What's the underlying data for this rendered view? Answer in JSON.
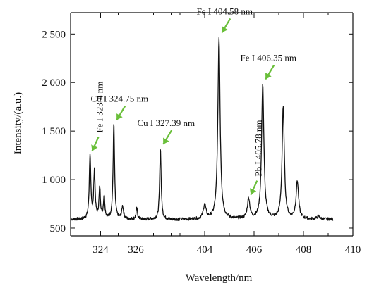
{
  "chart_data": {
    "type": "line",
    "xlabel": "Wavelength/nm",
    "ylabel": "Intensity/(a.u.)",
    "ylim": [
      420,
      2720
    ],
    "y_ticks": [
      {
        "value": 500,
        "label": "500"
      },
      {
        "value": 1000,
        "label": "1 000"
      },
      {
        "value": 1500,
        "label": "1 500"
      },
      {
        "value": 2000,
        "label": "2 000"
      },
      {
        "value": 2500,
        "label": "2 500"
      }
    ],
    "x_axis_note": "broken axis: 322.3–328.5 nm then 403.0–410.0 nm",
    "x_segments": [
      {
        "min": 322.3,
        "max": 328.5,
        "ticks": [
          324,
          326
        ]
      },
      {
        "min": 403.0,
        "max": 410.0,
        "ticks": [
          404,
          406,
          408,
          410
        ]
      }
    ],
    "baseline": 590,
    "peaks": [
      {
        "x": 323.4,
        "y": 1250,
        "width": 0.05
      },
      {
        "x": 323.65,
        "y": 1070,
        "width": 0.05
      },
      {
        "x": 323.95,
        "y": 900,
        "width": 0.05
      },
      {
        "x": 324.2,
        "y": 820,
        "width": 0.05
      },
      {
        "x": 324.75,
        "y": 1570,
        "width": 0.05
      },
      {
        "x": 325.25,
        "y": 720,
        "width": 0.06
      },
      {
        "x": 326.05,
        "y": 700,
        "width": 0.05
      },
      {
        "x": 327.39,
        "y": 1320,
        "width": 0.05
      },
      {
        "x": 404.0,
        "y": 740,
        "width": 0.06
      },
      {
        "x": 404.58,
        "y": 2470,
        "width": 0.055
      },
      {
        "x": 405.78,
        "y": 800,
        "width": 0.06
      },
      {
        "x": 406.35,
        "y": 1990,
        "width": 0.055
      },
      {
        "x": 407.18,
        "y": 1740,
        "width": 0.055
      },
      {
        "x": 407.75,
        "y": 980,
        "width": 0.06
      },
      {
        "x": 408.6,
        "y": 620,
        "width": 0.06
      }
    ],
    "annotations": [
      {
        "text": "Fe I 323.4 nm",
        "x": 323.4,
        "y": 1250,
        "vertical": true
      },
      {
        "text": "Cu I 324.75 nm",
        "x": 324.75,
        "y": 1570,
        "vertical": false
      },
      {
        "text": "Cu I 327.39 nm",
        "x": 327.39,
        "y": 1320,
        "vertical": false
      },
      {
        "text": "Fe I 404.58 nm",
        "x": 404.58,
        "y": 2470,
        "vertical": false
      },
      {
        "text": "Pb I 405.78 nm",
        "x": 405.78,
        "y": 800,
        "vertical": true
      },
      {
        "text": "Fe I 406.35 nm",
        "x": 406.35,
        "y": 1990,
        "vertical": false
      }
    ],
    "colors": {
      "line": "#111111",
      "arrow": "#6abf3a",
      "axis": "#111111"
    },
    "grid": false,
    "legend": "none"
  }
}
